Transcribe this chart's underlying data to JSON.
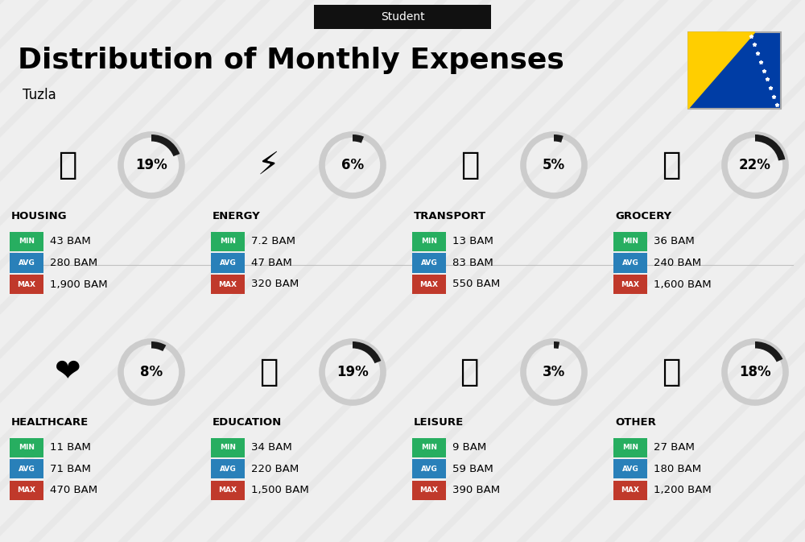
{
  "title": "Distribution of Monthly Expenses",
  "subtitle": "Student",
  "location": "Tuzla",
  "bg_color": "#efefef",
  "categories": [
    {
      "name": "HOUSING",
      "pct": 19,
      "emoji": "🏙",
      "min": "43 BAM",
      "avg": "280 BAM",
      "max": "1,900 BAM",
      "col": 0,
      "row": 0
    },
    {
      "name": "ENERGY",
      "pct": 6,
      "emoji": "⚡",
      "min": "7.2 BAM",
      "avg": "47 BAM",
      "max": "320 BAM",
      "col": 1,
      "row": 0
    },
    {
      "name": "TRANSPORT",
      "pct": 5,
      "emoji": "🚌",
      "min": "13 BAM",
      "avg": "83 BAM",
      "max": "550 BAM",
      "col": 2,
      "row": 0
    },
    {
      "name": "GROCERY",
      "pct": 22,
      "emoji": "🛒",
      "min": "36 BAM",
      "avg": "240 BAM",
      "max": "1,600 BAM",
      "col": 3,
      "row": 0
    },
    {
      "name": "HEALTHCARE",
      "pct": 8,
      "emoji": "❤️",
      "min": "11 BAM",
      "avg": "71 BAM",
      "max": "470 BAM",
      "col": 0,
      "row": 1
    },
    {
      "name": "EDUCATION",
      "pct": 19,
      "emoji": "🎓",
      "min": "34 BAM",
      "avg": "220 BAM",
      "max": "1,500 BAM",
      "col": 1,
      "row": 1
    },
    {
      "name": "LEISURE",
      "pct": 3,
      "emoji": "🛍️",
      "min": "9 BAM",
      "avg": "59 BAM",
      "max": "390 BAM",
      "col": 2,
      "row": 1
    },
    {
      "name": "OTHER",
      "pct": 18,
      "emoji": "💰",
      "min": "27 BAM",
      "avg": "180 BAM",
      "max": "1,200 BAM",
      "col": 3,
      "row": 1
    }
  ],
  "min_color": "#27ae60",
  "avg_color": "#2980b9",
  "max_color": "#c0392b",
  "label_text_color": "#ffffff",
  "dark_color": "#111111",
  "gray_ring_color": "#cccccc",
  "arc_color": "#1a1a1a",
  "stripe_color": "#e0e0e0",
  "flag_blue": "#003da5",
  "flag_yellow": "#ffce00"
}
